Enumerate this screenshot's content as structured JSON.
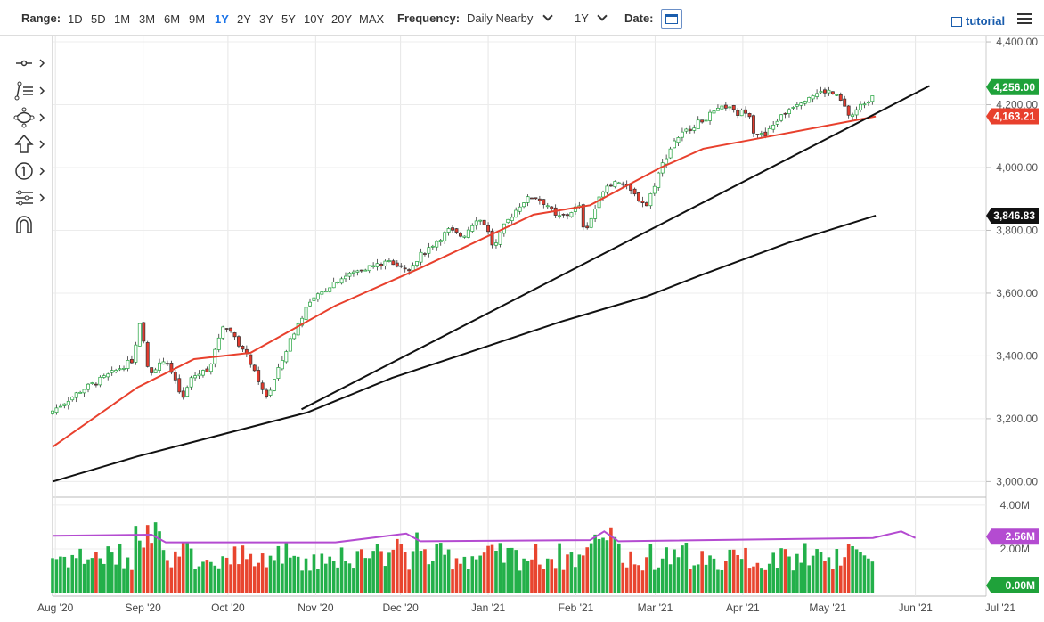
{
  "toolbar": {
    "range_label": "Range:",
    "ranges": [
      "1D",
      "5D",
      "1M",
      "3M",
      "6M",
      "9M",
      "1Y",
      "2Y",
      "3Y",
      "5Y",
      "10Y",
      "20Y",
      "MAX"
    ],
    "active_range": "1Y",
    "frequency_label": "Frequency:",
    "frequency_value": "Daily Nearby",
    "period_value": "1Y",
    "date_label": "Date:",
    "tutorial_label": "tutorial"
  },
  "tools": [
    "crosshair-tool",
    "trend-line-tool",
    "shape-tool",
    "arrow-tool",
    "counter-tool",
    "indicator-tool",
    "magnet-tool"
  ],
  "chart_data": {
    "type": "candlestick",
    "price_axis": {
      "ticks": [
        "4,400.00",
        "4,200.00",
        "4,000.00",
        "3,800.00",
        "3,600.00",
        "3,400.00",
        "3,200.00",
        "3,000.00"
      ],
      "ylim": [
        2950,
        4420
      ]
    },
    "x_labels": [
      "Aug '20",
      "Sep '20",
      "Oct '20",
      "Nov '20",
      "Dec '20",
      "Jan '21",
      "Feb '21",
      "Mar '21",
      "Apr '21",
      "May '21",
      "Jun '21",
      "Jul '21"
    ],
    "price_badges": {
      "last": "4,256.00",
      "ma50": "4,163.21",
      "ma200": "3,846.83"
    },
    "volume_axis": {
      "ticks": [
        "4.00M",
        "2.00M"
      ],
      "ylim": [
        0,
        4.2
      ]
    },
    "volume_badges": {
      "avg": "2.56M",
      "zero": "0.00M"
    },
    "close_path": [
      [
        0,
        3225
      ],
      [
        10,
        3290
      ],
      [
        20,
        3340
      ],
      [
        28,
        3385
      ],
      [
        31,
        3505
      ],
      [
        34,
        3345
      ],
      [
        40,
        3390
      ],
      [
        46,
        3260
      ],
      [
        49,
        3330
      ],
      [
        55,
        3360
      ],
      [
        57,
        3400
      ],
      [
        60,
        3500
      ],
      [
        64,
        3470
      ],
      [
        67,
        3420
      ],
      [
        70,
        3380
      ],
      [
        73,
        3305
      ],
      [
        76,
        3270
      ],
      [
        80,
        3360
      ],
      [
        84,
        3450
      ],
      [
        90,
        3560
      ],
      [
        100,
        3640
      ],
      [
        110,
        3680
      ],
      [
        120,
        3700
      ],
      [
        126,
        3680
      ],
      [
        130,
        3720
      ],
      [
        135,
        3760
      ],
      [
        140,
        3800
      ],
      [
        145,
        3780
      ],
      [
        150,
        3840
      ],
      [
        153,
        3820
      ],
      [
        156,
        3740
      ],
      [
        160,
        3820
      ],
      [
        166,
        3890
      ],
      [
        170,
        3910
      ],
      [
        175,
        3880
      ],
      [
        178,
        3840
      ],
      [
        182,
        3850
      ],
      [
        186,
        3880
      ],
      [
        188,
        3800
      ],
      [
        190,
        3830
      ],
      [
        195,
        3940
      ],
      [
        200,
        3960
      ],
      [
        206,
        3910
      ],
      [
        210,
        3880
      ],
      [
        215,
        4000
      ],
      [
        220,
        4090
      ],
      [
        226,
        4130
      ],
      [
        232,
        4165
      ],
      [
        238,
        4195
      ],
      [
        242,
        4170
      ],
      [
        246,
        4185
      ],
      [
        248,
        4110
      ],
      [
        252,
        4100
      ],
      [
        256,
        4150
      ],
      [
        262,
        4200
      ],
      [
        268,
        4230
      ],
      [
        274,
        4245
      ],
      [
        278,
        4220
      ],
      [
        282,
        4160
      ],
      [
        286,
        4200
      ],
      [
        289,
        4220
      ],
      [
        291,
        4256
      ]
    ],
    "close_x_unit": "days since Jul 31 2020",
    "ma50": [
      [
        0,
        3110
      ],
      [
        30,
        3300
      ],
      [
        50,
        3390
      ],
      [
        70,
        3410
      ],
      [
        100,
        3560
      ],
      [
        130,
        3680
      ],
      [
        170,
        3850
      ],
      [
        190,
        3880
      ],
      [
        215,
        4000
      ],
      [
        230,
        4060
      ],
      [
        260,
        4110
      ],
      [
        291,
        4163
      ]
    ],
    "ma200": [
      [
        0,
        3000
      ],
      [
        30,
        3080
      ],
      [
        60,
        3150
      ],
      [
        90,
        3220
      ],
      [
        120,
        3330
      ],
      [
        150,
        3420
      ],
      [
        180,
        3510
      ],
      [
        210,
        3590
      ],
      [
        230,
        3660
      ],
      [
        260,
        3760
      ],
      [
        291,
        3847
      ]
    ],
    "trend_line": [
      [
        88,
        3230
      ],
      [
        310,
        4260
      ]
    ],
    "volume_avg": [
      [
        0,
        2.6
      ],
      [
        35,
        2.65
      ],
      [
        40,
        2.3
      ],
      [
        100,
        2.3
      ],
      [
        125,
        2.7
      ],
      [
        130,
        2.35
      ],
      [
        190,
        2.4
      ],
      [
        195,
        2.8
      ],
      [
        200,
        2.35
      ],
      [
        290,
        2.5
      ],
      [
        300,
        2.8
      ],
      [
        305,
        2.5
      ]
    ]
  }
}
